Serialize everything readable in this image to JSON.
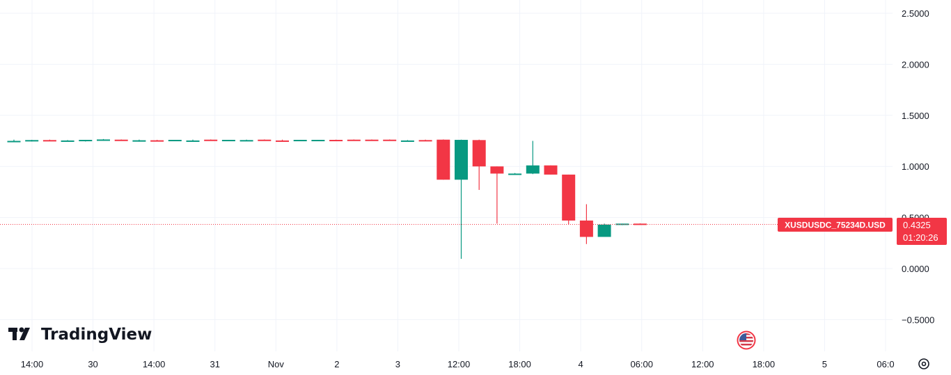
{
  "chart_data": {
    "type": "candlestick",
    "symbol": "XUSDUSDC_75234D.USD",
    "last_price": "0.4325",
    "countdown": "01:20:26",
    "watermark": "TradingView",
    "ylim": [
      -0.75,
      2.6
    ],
    "y_ticks": [
      2.5,
      2.0,
      1.5,
      1.0,
      0.5,
      0.0,
      -0.5
    ],
    "y_tick_labels": [
      "2.5000",
      "2.0000",
      "1.5000",
      "1.0000",
      "0.5000",
      "0.0000",
      "−0.5000"
    ],
    "x_tick_labels": [
      "14:00",
      "30",
      "14:00",
      "31",
      "Nov",
      "2",
      "3",
      "12:00",
      "18:00",
      "4",
      "06:00",
      "12:00",
      "18:00",
      "5",
      "06:0"
    ],
    "grid": true,
    "colors": {
      "up": "#089981",
      "down": "#f23645",
      "grid": "#f0f3fa",
      "last_price_line": "#f23645"
    },
    "candles": [
      {
        "o": 1.25,
        "h": 1.262,
        "l": 1.242,
        "c": 1.25
      },
      {
        "o": 1.25,
        "h": 1.26,
        "l": 1.244,
        "c": 1.258
      },
      {
        "o": 1.258,
        "h": 1.262,
        "l": 1.25,
        "c": 1.252
      },
      {
        "o": 1.252,
        "h": 1.258,
        "l": 1.248,
        "c": 1.254
      },
      {
        "o": 1.25,
        "h": 1.26,
        "l": 1.244,
        "c": 1.26
      },
      {
        "o": 1.262,
        "h": 1.268,
        "l": 1.252,
        "c": 1.264
      },
      {
        "o": 1.262,
        "h": 1.264,
        "l": 1.25,
        "c": 1.252
      },
      {
        "o": 1.252,
        "h": 1.262,
        "l": 1.242,
        "c": 1.256
      },
      {
        "o": 1.256,
        "h": 1.26,
        "l": 1.25,
        "c": 1.252
      },
      {
        "o": 1.25,
        "h": 1.26,
        "l": 1.248,
        "c": 1.26
      },
      {
        "o": 1.25,
        "h": 1.262,
        "l": 1.242,
        "c": 1.254
      },
      {
        "o": 1.262,
        "h": 1.264,
        "l": 1.25,
        "c": 1.252
      },
      {
        "o": 1.25,
        "h": 1.26,
        "l": 1.248,
        "c": 1.26
      },
      {
        "o": 1.258,
        "h": 1.262,
        "l": 1.252,
        "c": 1.258
      },
      {
        "o": 1.262,
        "h": 1.264,
        "l": 1.25,
        "c": 1.252
      },
      {
        "o": 1.254,
        "h": 1.262,
        "l": 1.242,
        "c": 1.252
      },
      {
        "o": 1.25,
        "h": 1.26,
        "l": 1.248,
        "c": 1.26
      },
      {
        "o": 1.25,
        "h": 1.26,
        "l": 1.248,
        "c": 1.26
      },
      {
        "o": 1.26,
        "h": 1.262,
        "l": 1.254,
        "c": 1.258
      },
      {
        "o": 1.262,
        "h": 1.264,
        "l": 1.252,
        "c": 1.26
      },
      {
        "o": 1.262,
        "h": 1.264,
        "l": 1.254,
        "c": 1.26
      },
      {
        "o": 1.262,
        "h": 1.264,
        "l": 1.25,
        "c": 1.252
      },
      {
        "o": 1.254,
        "h": 1.258,
        "l": 1.248,
        "c": 1.254
      },
      {
        "o": 1.258,
        "h": 1.262,
        "l": 1.25,
        "c": 1.256
      },
      {
        "o": 1.262,
        "h": 1.264,
        "l": 0.87,
        "c": 0.87
      },
      {
        "o": 0.87,
        "h": 1.262,
        "l": 0.095,
        "c": 1.26
      },
      {
        "o": 1.258,
        "h": 1.262,
        "l": 0.77,
        "c": 1.0
      },
      {
        "o": 1.0,
        "h": 1.0,
        "l": 0.44,
        "c": 0.93
      },
      {
        "o": 0.925,
        "h": 0.935,
        "l": 0.925,
        "c": 0.93
      },
      {
        "o": 0.93,
        "h": 1.25,
        "l": 0.925,
        "c": 1.01
      },
      {
        "o": 1.01,
        "h": 1.01,
        "l": 0.92,
        "c": 0.92
      },
      {
        "o": 0.92,
        "h": 0.92,
        "l": 0.43,
        "c": 0.47
      },
      {
        "o": 0.47,
        "h": 0.63,
        "l": 0.24,
        "c": 0.31
      },
      {
        "o": 0.31,
        "h": 0.44,
        "l": 0.31,
        "c": 0.43
      },
      {
        "o": 0.43,
        "h": 0.44,
        "l": 0.425,
        "c": 0.44
      },
      {
        "o": 0.44,
        "h": 0.442,
        "l": 0.43,
        "c": 0.433
      }
    ]
  }
}
